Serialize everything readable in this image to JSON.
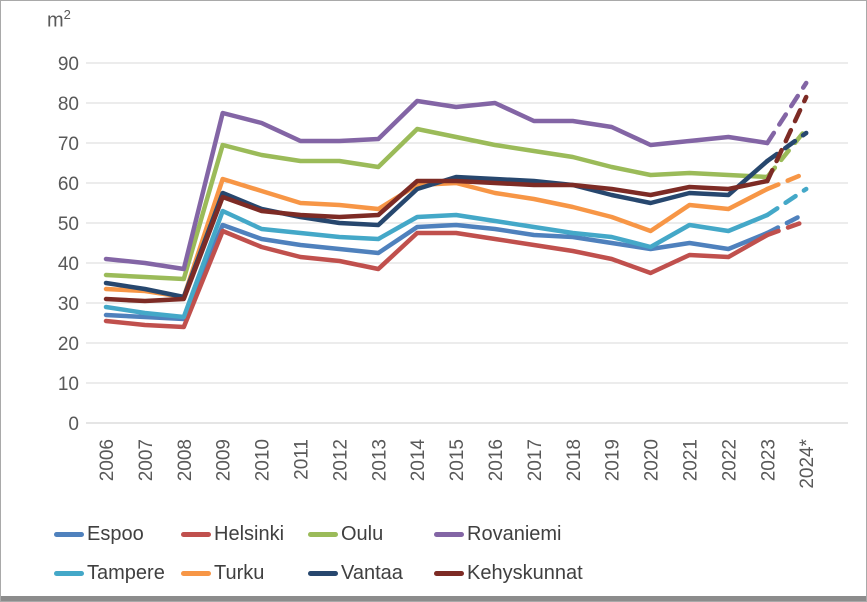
{
  "chart_data": {
    "type": "line",
    "title": "",
    "ylabel_base": "m",
    "ylabel_sup": "2",
    "xlabel": "",
    "categories": [
      "2006",
      "2007",
      "2008",
      "2009",
      "2010",
      "2011",
      "2012",
      "2013",
      "2014",
      "2015",
      "2016",
      "2017",
      "2018",
      "2019",
      "2020",
      "2021",
      "2022",
      "2023",
      "2024*"
    ],
    "ylim": [
      0,
      90
    ],
    "y_ticks": [
      0,
      10,
      20,
      30,
      40,
      50,
      60,
      70,
      80,
      90
    ],
    "grid": true,
    "legend_position": "bottom",
    "last_segment_dashed": true,
    "colors": {
      "grid": "#D9D9D9",
      "axis": "#CBCBCB",
      "tick_text": "#595959",
      "legend_text": "#404040"
    },
    "series": [
      {
        "name": "Espoo",
        "color": "#4F81BD",
        "values": [
          27,
          26.5,
          26,
          49.5,
          46,
          44.5,
          43.5,
          42.5,
          49,
          49.5,
          48.5,
          47,
          46.5,
          45,
          43.5,
          45,
          43.5,
          47.5,
          52.5
        ]
      },
      {
        "name": "Helsinki",
        "color": "#C0504D",
        "values": [
          25.5,
          24.5,
          24,
          48,
          44,
          41.5,
          40.5,
          38.5,
          47.5,
          47.5,
          46,
          44.5,
          43,
          41,
          37.5,
          42,
          41.5,
          47,
          50.5
        ]
      },
      {
        "name": "Oulu",
        "color": "#9BBB59",
        "values": [
          37,
          36.5,
          36,
          69.5,
          67,
          65.5,
          65.5,
          64,
          73.5,
          71.5,
          69.5,
          68,
          66.5,
          64,
          62,
          62.5,
          62,
          61.5,
          73.5
        ]
      },
      {
        "name": "Rovaniemi",
        "color": "#8365A5",
        "values": [
          41,
          40,
          38.5,
          77.5,
          75,
          70.5,
          70.5,
          71,
          80.5,
          79,
          80,
          75.5,
          75.5,
          74,
          69.5,
          70.5,
          71.5,
          70,
          85
        ]
      },
      {
        "name": "Tampere",
        "color": "#44A8C8",
        "values": [
          29,
          27.5,
          26.5,
          53,
          48.5,
          47.5,
          46.5,
          46,
          51.5,
          52,
          50.5,
          49,
          47.5,
          46.5,
          44,
          49.5,
          48,
          52,
          58.5
        ]
      },
      {
        "name": "Turku",
        "color": "#F79646",
        "values": [
          33.5,
          33,
          31.5,
          61,
          58,
          55,
          54.5,
          53.5,
          59.5,
          60,
          57.5,
          56,
          54,
          51.5,
          48,
          54.5,
          53.5,
          58.5,
          62.5
        ]
      },
      {
        "name": "Vantaa",
        "color": "#27476E",
        "values": [
          35,
          33.5,
          31.5,
          57.5,
          53.5,
          51.5,
          50,
          49.5,
          58.5,
          61.5,
          61,
          60.5,
          59.5,
          57,
          55,
          57.5,
          57,
          65.5,
          72.5
        ]
      },
      {
        "name": "Kehyskunnat",
        "color": "#7D2B25",
        "values": [
          31,
          30.5,
          31,
          56.5,
          53,
          52,
          51.5,
          52,
          60.5,
          60.5,
          60,
          59.5,
          59.5,
          58.5,
          57,
          59,
          58.5,
          60.5,
          81.5
        ]
      }
    ]
  }
}
